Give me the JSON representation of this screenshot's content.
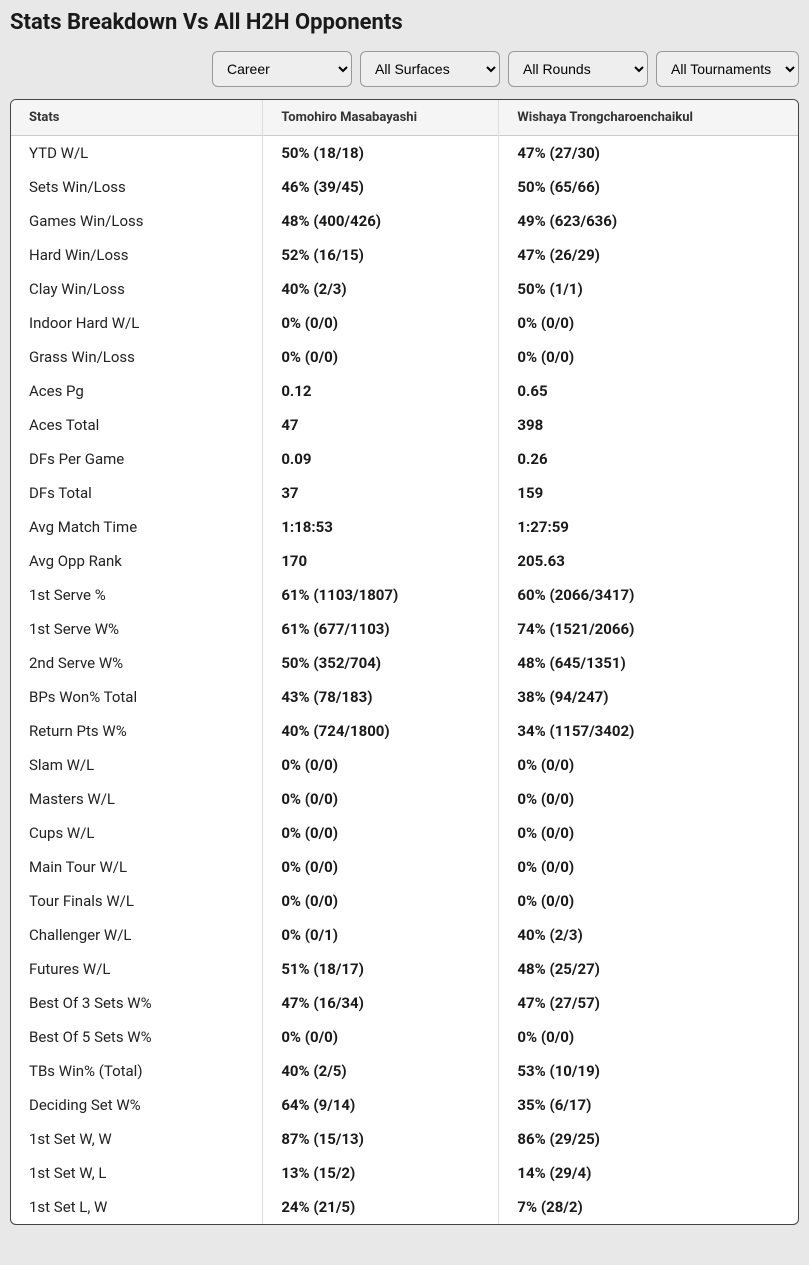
{
  "title": "Stats Breakdown Vs All H2H Opponents",
  "filters": {
    "period": "Career",
    "surface": "All Surfaces",
    "round": "All Rounds",
    "tournament": "All Tournaments"
  },
  "table": {
    "headers": {
      "stats": "Stats",
      "player1": "Tomohiro Masabayashi",
      "player2": "Wishaya Trongcharoenchaikul"
    },
    "rows": [
      {
        "stat": "YTD W/L",
        "p1": "50% (18/18)",
        "p2": "47% (27/30)"
      },
      {
        "stat": "Sets Win/Loss",
        "p1": "46% (39/45)",
        "p2": "50% (65/66)"
      },
      {
        "stat": "Games Win/Loss",
        "p1": "48% (400/426)",
        "p2": "49% (623/636)"
      },
      {
        "stat": "Hard Win/Loss",
        "p1": "52% (16/15)",
        "p2": "47% (26/29)"
      },
      {
        "stat": "Clay Win/Loss",
        "p1": "40% (2/3)",
        "p2": "50% (1/1)"
      },
      {
        "stat": "Indoor Hard W/L",
        "p1": "0% (0/0)",
        "p2": "0% (0/0)"
      },
      {
        "stat": "Grass Win/Loss",
        "p1": "0% (0/0)",
        "p2": "0% (0/0)"
      },
      {
        "stat": "Aces Pg",
        "p1": "0.12",
        "p2": "0.65"
      },
      {
        "stat": "Aces Total",
        "p1": "47",
        "p2": "398"
      },
      {
        "stat": "DFs Per Game",
        "p1": "0.09",
        "p2": "0.26"
      },
      {
        "stat": "DFs Total",
        "p1": "37",
        "p2": "159"
      },
      {
        "stat": "Avg Match Time",
        "p1": "1:18:53",
        "p2": "1:27:59"
      },
      {
        "stat": "Avg Opp Rank",
        "p1": "170",
        "p2": "205.63"
      },
      {
        "stat": "1st Serve %",
        "p1": "61% (1103/1807)",
        "p2": "60% (2066/3417)"
      },
      {
        "stat": "1st Serve W%",
        "p1": "61% (677/1103)",
        "p2": "74% (1521/2066)"
      },
      {
        "stat": "2nd Serve W%",
        "p1": "50% (352/704)",
        "p2": "48% (645/1351)"
      },
      {
        "stat": "BPs Won% Total",
        "p1": "43% (78/183)",
        "p2": "38% (94/247)"
      },
      {
        "stat": "Return Pts W%",
        "p1": "40% (724/1800)",
        "p2": "34% (1157/3402)"
      },
      {
        "stat": "Slam W/L",
        "p1": "0% (0/0)",
        "p2": "0% (0/0)"
      },
      {
        "stat": "Masters W/L",
        "p1": "0% (0/0)",
        "p2": "0% (0/0)"
      },
      {
        "stat": "Cups W/L",
        "p1": "0% (0/0)",
        "p2": "0% (0/0)"
      },
      {
        "stat": "Main Tour W/L",
        "p1": "0% (0/0)",
        "p2": "0% (0/0)"
      },
      {
        "stat": "Tour Finals W/L",
        "p1": "0% (0/0)",
        "p2": "0% (0/0)"
      },
      {
        "stat": "Challenger W/L",
        "p1": "0% (0/1)",
        "p2": "40% (2/3)"
      },
      {
        "stat": "Futures W/L",
        "p1": "51% (18/17)",
        "p2": "48% (25/27)"
      },
      {
        "stat": "Best Of 3 Sets W%",
        "p1": "47% (16/34)",
        "p2": "47% (27/57)"
      },
      {
        "stat": "Best Of 5 Sets W%",
        "p1": "0% (0/0)",
        "p2": "0% (0/0)"
      },
      {
        "stat": "TBs Win% (Total)",
        "p1": "40% (2/5)",
        "p2": "53% (10/19)"
      },
      {
        "stat": "Deciding Set W%",
        "p1": "64% (9/14)",
        "p2": "35% (6/17)"
      },
      {
        "stat": "1st Set W, W",
        "p1": "87% (15/13)",
        "p2": "86% (29/25)"
      },
      {
        "stat": "1st Set W, L",
        "p1": "13% (15/2)",
        "p2": "14% (29/4)"
      },
      {
        "stat": "1st Set L, W",
        "p1": "24% (21/5)",
        "p2": "7% (28/2)"
      }
    ]
  }
}
